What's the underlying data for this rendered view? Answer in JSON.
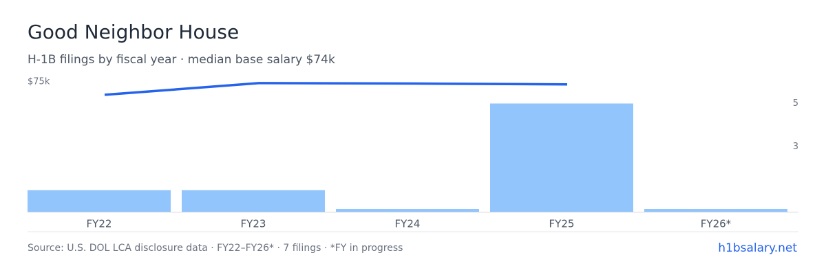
{
  "chart_data": {
    "type": "bar-line",
    "title": "Good Neighbor House",
    "subtitle": "H-1B filings by fiscal year · median base salary $74k",
    "categories": [
      "FY22",
      "FY23",
      "FY24",
      "FY25",
      "FY26*"
    ],
    "series": [
      {
        "name": "Filings",
        "type": "bar",
        "axis": "y2",
        "color": "#93c5fd",
        "values": [
          1,
          1,
          0,
          5,
          0
        ]
      },
      {
        "name": "Median base salary",
        "type": "line",
        "color": "#2563eb",
        "values": [
          73500,
          74850,
          74800,
          74700,
          null
        ]
      }
    ],
    "ylim": [
      60000,
      75000
    ],
    "yticks": [
      {
        "value": 75000,
        "label": "$75k"
      }
    ],
    "y2lim": [
      0,
      6
    ],
    "y2ticks": [
      3,
      5
    ],
    "footer": "Source: U.S. DOL LCA disclosure data · FY22–FY26* · 7 filings · *FY in progress",
    "brand": "h1bsalary.net"
  }
}
